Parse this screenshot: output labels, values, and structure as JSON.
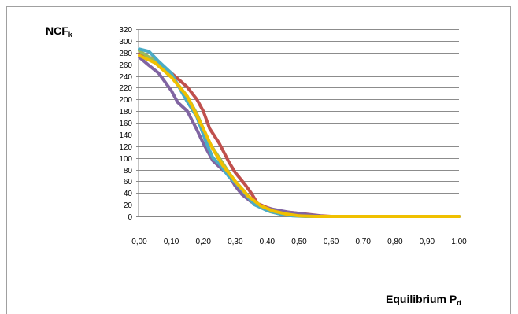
{
  "chart_data": {
    "type": "line",
    "title": "",
    "ylabel": {
      "main": "NCF",
      "sub": "k"
    },
    "xlabel": {
      "main": "Equilibrium P",
      "sub": "d"
    },
    "xlim": [
      0,
      1
    ],
    "ylim": [
      0,
      320
    ],
    "yticks": [
      0,
      20,
      40,
      60,
      80,
      100,
      120,
      140,
      160,
      180,
      200,
      220,
      240,
      260,
      280,
      300,
      320
    ],
    "xtick_labels": [
      "0,00",
      "0,10",
      "0,20",
      "0,30",
      "0,40",
      "0,50",
      "0,60",
      "0,70",
      "0,80",
      "0,90",
      "1,00"
    ],
    "grid": "horizontal",
    "legend": "none",
    "series": [
      {
        "color": "#c0504d",
        "points": [
          [
            0,
            278
          ],
          [
            0.05,
            268
          ],
          [
            0.1,
            245
          ],
          [
            0.15,
            221
          ],
          [
            0.18,
            200
          ],
          [
            0.2,
            180
          ],
          [
            0.22,
            150
          ],
          [
            0.25,
            125
          ],
          [
            0.28,
            93
          ],
          [
            0.3,
            75
          ],
          [
            0.33,
            55
          ],
          [
            0.35,
            40
          ],
          [
            0.37,
            22
          ],
          [
            0.4,
            15
          ],
          [
            0.43,
            10
          ],
          [
            0.47,
            7
          ],
          [
            0.52,
            4
          ],
          [
            0.57,
            1
          ],
          [
            0.6,
            0
          ],
          [
            1.0,
            0
          ]
        ]
      },
      {
        "color": "#9bbb59",
        "points": [
          [
            0,
            283
          ],
          [
            0.05,
            265
          ],
          [
            0.1,
            240
          ],
          [
            0.15,
            205
          ],
          [
            0.18,
            175
          ],
          [
            0.2,
            150
          ],
          [
            0.22,
            125
          ],
          [
            0.25,
            100
          ],
          [
            0.28,
            75
          ],
          [
            0.3,
            60
          ],
          [
            0.33,
            42
          ],
          [
            0.35,
            28
          ],
          [
            0.38,
            16
          ],
          [
            0.41,
            8
          ],
          [
            0.45,
            3
          ],
          [
            0.5,
            1
          ],
          [
            0.55,
            0
          ],
          [
            1.0,
            0
          ]
        ]
      },
      {
        "color": "#8064a2",
        "points": [
          [
            0,
            272
          ],
          [
            0.03,
            258
          ],
          [
            0.06,
            245
          ],
          [
            0.1,
            215
          ],
          [
            0.12,
            195
          ],
          [
            0.15,
            180
          ],
          [
            0.18,
            148
          ],
          [
            0.2,
            125
          ],
          [
            0.23,
            95
          ],
          [
            0.25,
            85
          ],
          [
            0.28,
            70
          ],
          [
            0.3,
            52
          ],
          [
            0.32,
            38
          ],
          [
            0.35,
            25
          ],
          [
            0.38,
            16
          ],
          [
            0.42,
            12
          ],
          [
            0.47,
            7
          ],
          [
            0.53,
            3
          ],
          [
            0.58,
            0
          ],
          [
            1.0,
            0
          ]
        ]
      },
      {
        "color": "#4bacc6",
        "points": [
          [
            0,
            286
          ],
          [
            0.03,
            282
          ],
          [
            0.06,
            265
          ],
          [
            0.1,
            245
          ],
          [
            0.13,
            215
          ],
          [
            0.15,
            196
          ],
          [
            0.18,
            170
          ],
          [
            0.21,
            125
          ],
          [
            0.23,
            100
          ],
          [
            0.25,
            90
          ],
          [
            0.28,
            68
          ],
          [
            0.3,
            58
          ],
          [
            0.33,
            40
          ],
          [
            0.36,
            20
          ],
          [
            0.4,
            10
          ],
          [
            0.44,
            4
          ],
          [
            0.48,
            1
          ],
          [
            0.52,
            0
          ],
          [
            1.0,
            0
          ]
        ]
      },
      {
        "color": "#f0c000",
        "points": [
          [
            0,
            275
          ],
          [
            0.05,
            262
          ],
          [
            0.1,
            238
          ],
          [
            0.15,
            205
          ],
          [
            0.18,
            172
          ],
          [
            0.2,
            150
          ],
          [
            0.23,
            115
          ],
          [
            0.26,
            88
          ],
          [
            0.3,
            60
          ],
          [
            0.34,
            35
          ],
          [
            0.38,
            18
          ],
          [
            0.42,
            9
          ],
          [
            0.46,
            4
          ],
          [
            0.5,
            1
          ],
          [
            0.55,
            0
          ],
          [
            1.0,
            0
          ]
        ]
      }
    ]
  }
}
